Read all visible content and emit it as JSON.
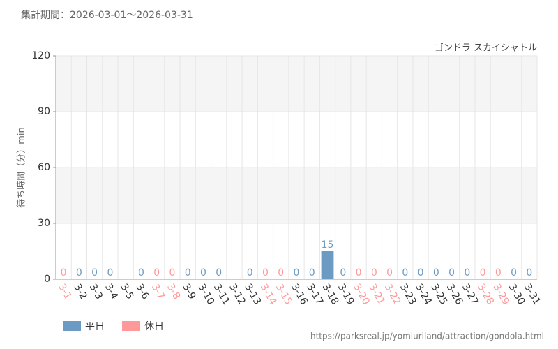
{
  "chart_data": {
    "type": "bar",
    "header": "集計期間：2026-03-01～2026-03-31",
    "title": "ゴンドラ スカイシャトル",
    "y_label": "待ち時間（分）min",
    "footer": "https://parksreal.jp/yomiuriland/attraction/gondola.html",
    "categories": [
      "3-1",
      "3-2",
      "3-3",
      "3-4",
      "3-5",
      "3-6",
      "3-7",
      "3-8",
      "3-9",
      "3-10",
      "3-11",
      "3-12",
      "3-13",
      "3-14",
      "3-15",
      "3-16",
      "3-17",
      "3-18",
      "3-19",
      "3-20",
      "3-21",
      "3-22",
      "3-23",
      "3-24",
      "3-25",
      "3-26",
      "3-27",
      "3-28",
      "3-29",
      "3-30",
      "3-31"
    ],
    "series": [
      {
        "name": "平日",
        "color": "#6b9bc3",
        "values": [
          null,
          0,
          0,
          0,
          null,
          0,
          null,
          null,
          0,
          0,
          0,
          null,
          0,
          null,
          null,
          0,
          0,
          15,
          0,
          null,
          null,
          null,
          0,
          0,
          0,
          0,
          0,
          null,
          null,
          0,
          0
        ]
      },
      {
        "name": "休日",
        "color": "#ff9999",
        "values": [
          0,
          null,
          null,
          null,
          null,
          null,
          0,
          0,
          null,
          null,
          null,
          null,
          null,
          0,
          0,
          null,
          null,
          null,
          null,
          0,
          0,
          0,
          null,
          null,
          null,
          null,
          null,
          0,
          0,
          null,
          null
        ]
      }
    ],
    "ylim": [
      0,
      120
    ],
    "yticks": [
      0,
      30,
      60,
      90,
      120
    ],
    "grid": true,
    "legend": "bottom-left"
  }
}
